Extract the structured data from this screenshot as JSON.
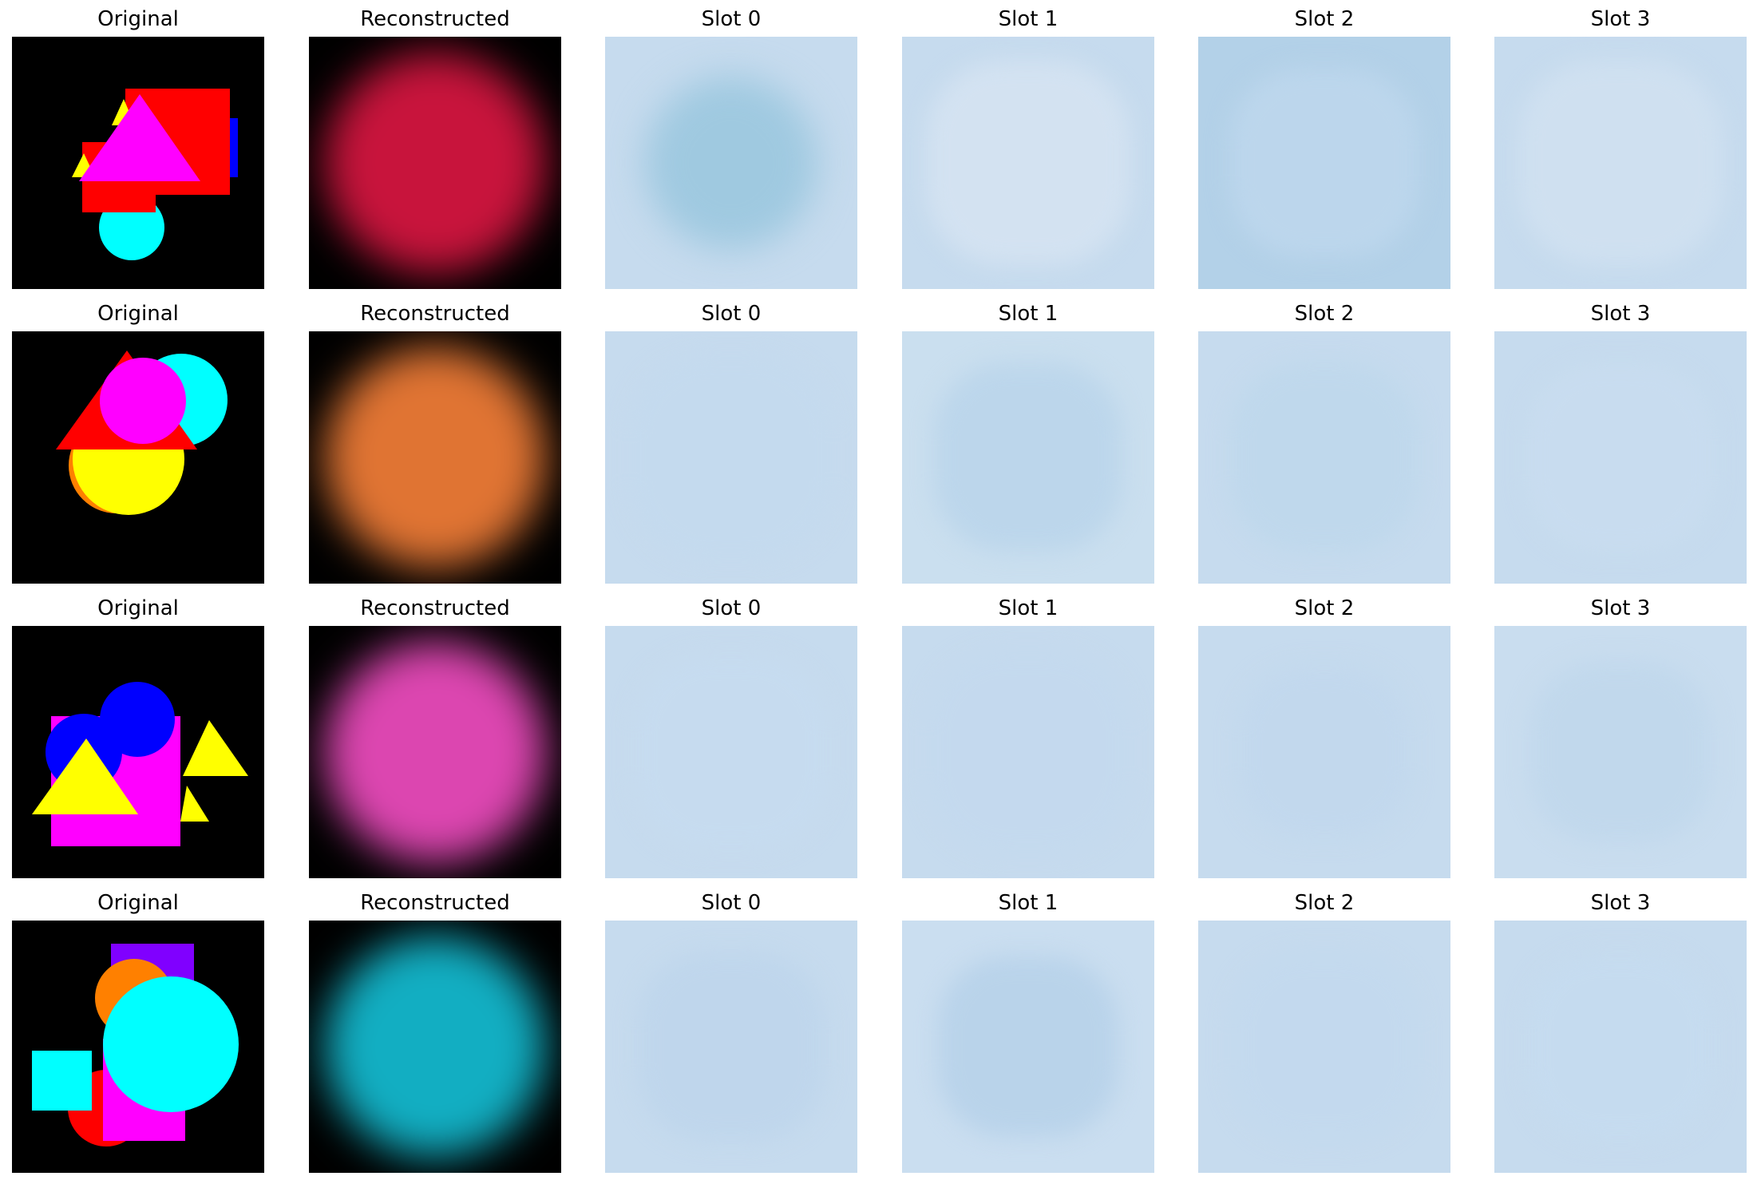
{
  "colors": {
    "background_black": "#000000",
    "slot_base": "#c6dbee",
    "red": "#ff0000",
    "magenta": "#ff00ff",
    "yellow": "#ffff00",
    "cyan": "#00ffff",
    "blue": "#0000ff",
    "orange": "#ff8000",
    "purple": "#8000ff"
  },
  "rows": [
    {
      "original_title": "Original",
      "reconstructed_title": "Reconstructed",
      "reconstruction_color": "#c8143c",
      "slots": [
        {
          "title": "Slot 0",
          "tint": "#9fc9e0"
        },
        {
          "title": "Slot 1",
          "tint": "#d3e2f1"
        },
        {
          "title": "Slot 2",
          "tint": "#bcd6ec"
        },
        {
          "title": "Slot 3",
          "tint": "#cfe0f0"
        }
      ]
    },
    {
      "original_title": "Original",
      "reconstructed_title": "Reconstructed",
      "reconstruction_color": "#e07433",
      "slots": [
        {
          "title": "Slot 0",
          "tint": "#c4daee"
        },
        {
          "title": "Slot 1",
          "tint": "#bcd6eb"
        },
        {
          "title": "Slot 2",
          "tint": "#bfd8ec"
        },
        {
          "title": "Slot 3",
          "tint": "#c8dcef"
        }
      ]
    },
    {
      "original_title": "Original",
      "reconstructed_title": "Reconstructed",
      "reconstruction_color": "#dc46b0",
      "slots": [
        {
          "title": "Slot 0",
          "tint": "#c6dbef"
        },
        {
          "title": "Slot 1",
          "tint": "#c4d9ee"
        },
        {
          "title": "Slot 2",
          "tint": "#c2d8ed"
        },
        {
          "title": "Slot 3",
          "tint": "#c1d8ec"
        }
      ]
    },
    {
      "original_title": "Original",
      "reconstructed_title": "Reconstructed",
      "reconstruction_color": "#12aec2",
      "slots": [
        {
          "title": "Slot 0",
          "tint": "#bfd6ec"
        },
        {
          "title": "Slot 1",
          "tint": "#b9d3ea"
        },
        {
          "title": "Slot 2",
          "tint": "#c3d9ee"
        },
        {
          "title": "Slot 3",
          "tint": "#c5dbef"
        }
      ]
    }
  ]
}
